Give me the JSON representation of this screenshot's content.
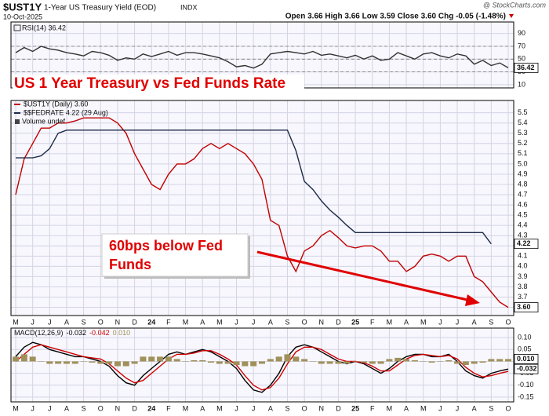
{
  "header": {
    "symbol": "$UST1Y",
    "name": "1-Year US Treasury Yield (EOD)",
    "exchange": "INDX",
    "date": "10-Oct-2025",
    "quote": "Open 3.66  High 3.66  Low 3.59  Close 3.60  Chg -0.05 (-1.48%)",
    "credit": "@ StockCharts.com"
  },
  "chart_data": [
    {
      "type": "line",
      "ylim": [
        5,
        108
      ],
      "yticks": [
        10,
        30,
        50,
        70,
        90
      ],
      "levels": [
        30,
        50,
        70
      ],
      "grid": true,
      "series": [
        {
          "name": "RSI(14) 36.42",
          "color": "#333333",
          "last_label": "36.42",
          "values": [
            60,
            68,
            62,
            70,
            66,
            64,
            60,
            58,
            55,
            62,
            60,
            56,
            48,
            52,
            50,
            58,
            54,
            58,
            62,
            56,
            60,
            60,
            58,
            55,
            52,
            46,
            38,
            40,
            36,
            42,
            58,
            60,
            62,
            60,
            58,
            62,
            56,
            58,
            55,
            52,
            56,
            50,
            55,
            48,
            50,
            60,
            55,
            50,
            58,
            60,
            55,
            52,
            58,
            55,
            42,
            48,
            40,
            44,
            36.42
          ]
        }
      ]
    },
    {
      "type": "line",
      "title": "US 1 Year Treasury vs Fed Funds Rate",
      "legend_extra": "Volume undef",
      "annotation": [
        "60bps below Fed",
        "Funds"
      ],
      "categories": [
        "M",
        null,
        "J",
        null,
        "J",
        null,
        "A",
        null,
        "S",
        null,
        "O",
        null,
        "N",
        null,
        "D",
        null,
        "24",
        null,
        "F",
        null,
        "M",
        null,
        "A",
        null,
        "M",
        null,
        "J",
        null,
        "J",
        null,
        "A",
        null,
        "S",
        null,
        "O",
        null,
        "N",
        null,
        "D",
        null,
        "25",
        null,
        "F",
        null,
        "M",
        null,
        "A",
        null,
        "M",
        null,
        "J",
        null,
        "J",
        null,
        "A",
        null,
        "S",
        null,
        "O"
      ],
      "ylim": [
        3.52,
        5.62
      ],
      "yticks": [
        3.6,
        3.7,
        3.8,
        3.9,
        {
          "value": 4,
          "label": "4.0"
        },
        4.1,
        4.2,
        4.3,
        4.4,
        4.5,
        4.6,
        4.7,
        4.8,
        4.9,
        {
          "value": 5,
          "label": "5.0"
        },
        5.1,
        5.2,
        5.3,
        5.4,
        5.5
      ],
      "grid": true,
      "series": [
        {
          "name": "$UST1Y (Daily) 3.60",
          "color": "#c00000",
          "last_label": "3.60",
          "values": [
            4.7,
            5.05,
            5.2,
            5.35,
            5.35,
            5.4,
            5.4,
            5.42,
            5.45,
            5.45,
            5.45,
            5.45,
            5.4,
            5.3,
            5.1,
            4.95,
            4.8,
            4.75,
            4.9,
            5.0,
            5.0,
            5.05,
            5.15,
            5.2,
            5.15,
            5.2,
            5.15,
            5.1,
            5.0,
            4.85,
            4.45,
            4.4,
            4.1,
            3.95,
            4.15,
            4.2,
            4.3,
            4.35,
            4.28,
            4.2,
            4.18,
            4.2,
            4.2,
            4.15,
            4.05,
            4.05,
            3.95,
            4.0,
            4.1,
            4.12,
            4.1,
            4.05,
            4.1,
            4.1,
            3.9,
            3.85,
            3.75,
            3.65,
            3.6
          ]
        },
        {
          "name": "$$FEDRATE 4.22 (29 Aug)",
          "color": "#1c2a48",
          "last_label": "4.22",
          "values": [
            5.06,
            5.06,
            5.06,
            5.08,
            5.15,
            5.3,
            5.33,
            5.33,
            5.33,
            5.33,
            5.33,
            5.33,
            5.33,
            5.33,
            5.33,
            5.33,
            5.33,
            5.33,
            5.33,
            5.33,
            5.33,
            5.33,
            5.33,
            5.33,
            5.33,
            5.33,
            5.33,
            5.33,
            5.33,
            5.33,
            5.33,
            5.33,
            5.33,
            5.13,
            4.83,
            4.75,
            4.64,
            4.55,
            4.48,
            4.4,
            4.33,
            4.33,
            4.33,
            4.33,
            4.33,
            4.33,
            4.33,
            4.33,
            4.33,
            4.33,
            4.33,
            4.33,
            4.33,
            4.33,
            4.33,
            4.33,
            4.22,
            null,
            null
          ]
        }
      ]
    },
    {
      "type": "line",
      "label": "MACD(12,26,9)",
      "categories": [
        "M",
        null,
        "J",
        null,
        "J",
        null,
        "A",
        null,
        "S",
        null,
        "O",
        null,
        "N",
        null,
        "D",
        null,
        "24",
        null,
        "F",
        null,
        "M",
        null,
        "A",
        null,
        "M",
        null,
        "J",
        null,
        "J",
        null,
        "A",
        null,
        "S",
        null,
        "O",
        null,
        "N",
        null,
        "D",
        null,
        "25",
        null,
        "F",
        null,
        "M",
        null,
        "A",
        null,
        "M",
        null,
        "J",
        null,
        "J",
        null,
        "A",
        null,
        "S",
        null,
        "O"
      ],
      "ylim": [
        -0.17,
        0.14
      ],
      "yticks": [
        {
          "value": 0.1,
          "label": "0.10"
        },
        0.05,
        {
          "value": 0,
          "label": "0.00"
        },
        -0.05,
        {
          "value": -0.1,
          "label": "-0.10"
        },
        {
          "value": -0.15,
          "label": "-0.15"
        }
      ],
      "grid": true,
      "series": [
        {
          "name": "-0.032",
          "color": "#000000",
          "last_label": "-0.032",
          "values": [
            0.02,
            0.06,
            0.08,
            0.07,
            0.05,
            0.04,
            0.03,
            0.02,
            0.02,
            0.01,
            0.0,
            -0.02,
            -0.06,
            -0.09,
            -0.1,
            -0.06,
            -0.03,
            0.0,
            0.03,
            0.04,
            0.03,
            0.04,
            0.05,
            0.04,
            0.02,
            0.0,
            -0.03,
            -0.08,
            -0.12,
            -0.13,
            -0.1,
            -0.05,
            0.02,
            0.06,
            0.07,
            0.06,
            0.04,
            0.02,
            0.0,
            -0.01,
            0.0,
            -0.01,
            -0.03,
            -0.05,
            -0.03,
            0.0,
            0.02,
            0.03,
            0.03,
            0.02,
            0.02,
            0.03,
            0.0,
            -0.04,
            -0.06,
            -0.07,
            -0.05,
            -0.04,
            -0.032
          ]
        },
        {
          "name": "-0.042",
          "color": "#d00000",
          "values": [
            0.0,
            0.03,
            0.06,
            0.07,
            0.06,
            0.05,
            0.04,
            0.03,
            0.02,
            0.015,
            0.01,
            -0.01,
            -0.04,
            -0.07,
            -0.09,
            -0.08,
            -0.05,
            -0.02,
            0.01,
            0.03,
            0.03,
            0.035,
            0.045,
            0.045,
            0.03,
            0.01,
            -0.015,
            -0.06,
            -0.1,
            -0.12,
            -0.11,
            -0.07,
            -0.01,
            0.04,
            0.06,
            0.06,
            0.05,
            0.03,
            0.01,
            0.0,
            0.0,
            -0.005,
            -0.02,
            -0.04,
            -0.04,
            -0.015,
            0.01,
            0.025,
            0.03,
            0.025,
            0.02,
            0.025,
            0.01,
            -0.025,
            -0.05,
            -0.065,
            -0.06,
            -0.05,
            -0.042
          ]
        },
        {
          "name": "0.010",
          "type": "bar",
          "color": "#a0905a",
          "last_label": "0.010",
          "values": [
            0.02,
            0.03,
            0.02,
            0,
            -0.01,
            -0.01,
            -0.01,
            -0.01,
            0,
            -0.005,
            -0.01,
            -0.01,
            -0.02,
            -0.02,
            -0.01,
            0.02,
            0.02,
            0.02,
            0.02,
            0.01,
            0,
            0.005,
            0.005,
            -0.005,
            -0.01,
            -0.01,
            -0.015,
            -0.02,
            -0.02,
            -0.01,
            0.01,
            0.02,
            0.03,
            0.02,
            0.01,
            0,
            -0.01,
            -0.01,
            -0.01,
            -0.01,
            0,
            -0.005,
            -0.01,
            -0.01,
            0.01,
            0.015,
            0.01,
            0.005,
            0,
            -0.005,
            0,
            0.005,
            -0.01,
            -0.015,
            -0.01,
            -0.005,
            0.01,
            0.01,
            0.01
          ]
        }
      ]
    }
  ]
}
